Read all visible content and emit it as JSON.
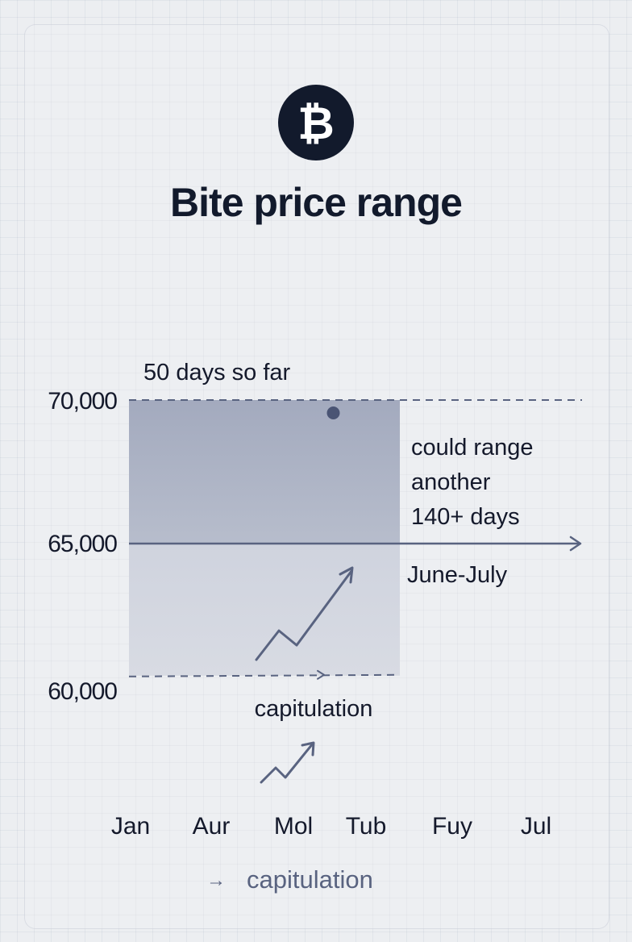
{
  "header": {
    "logo_glyph": "₿",
    "logo_icon": "bitcoin-icon",
    "title": "Bite price range"
  },
  "chart_data": {
    "type": "area",
    "title": "Bite price range",
    "x": [
      "Jan",
      "Aur",
      "Mol",
      "Tub",
      "Fuy",
      "Jul"
    ],
    "y_ticks": [
      {
        "label": "70,000",
        "value": 70000
      },
      {
        "label": "65,000",
        "value": 65000
      },
      {
        "label": "60,000",
        "value": 60000
      }
    ],
    "ylim": [
      59650,
      70000
    ],
    "range_band": {
      "x_start": "Jan",
      "x_end": "Tub",
      "low": 60400,
      "high": 70000,
      "mid": 65000
    },
    "current_point": {
      "x": 2.55,
      "y": 69550
    },
    "reference_lines": [
      {
        "y": 70000,
        "style": "dashed"
      },
      {
        "y": 65000,
        "style": "solid-arrow"
      },
      {
        "y": 60400,
        "style": "dashed-arrow"
      }
    ],
    "annotations": {
      "days_so_far": "50 days so far",
      "projection": [
        "could range",
        "another",
        "140+ days"
      ],
      "timing": "June-July",
      "capitulation": "capitulation",
      "footer_legend": "capitulation",
      "footer_arrow": "→"
    },
    "grid": true,
    "legend": "bottom-center",
    "colors": {
      "band_top": "#a6adc0",
      "band_bottom": "#d1d5df",
      "line": "#596380",
      "text": "#14192b"
    }
  }
}
